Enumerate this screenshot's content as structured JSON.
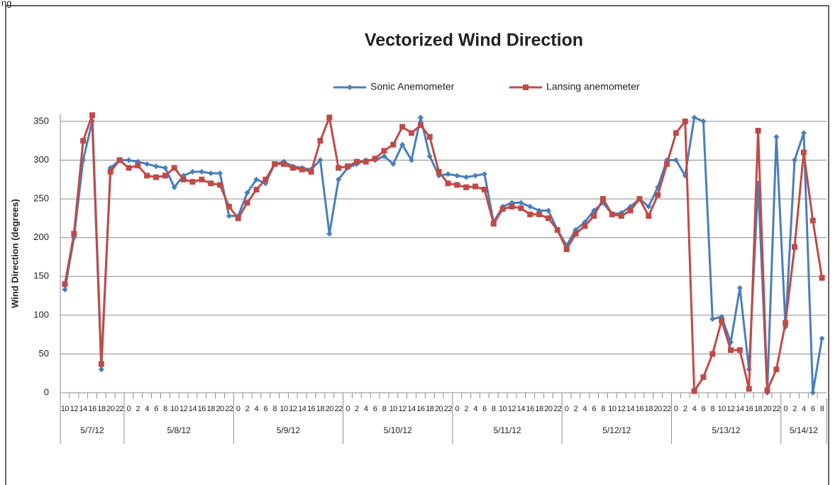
{
  "caption": "ng",
  "chart_data": {
    "type": "line",
    "title": "Vectorized Wind Direction",
    "y_label": "Wind Direction (degrees)",
    "categories": [
      "10",
      "12",
      "14",
      "16",
      "18",
      "20",
      "22",
      "0",
      "2",
      "4",
      "6",
      "8",
      "10",
      "12",
      "14",
      "16",
      "18",
      "20",
      "22",
      "0",
      "2",
      "4",
      "6",
      "8",
      "10",
      "12",
      "14",
      "16",
      "18",
      "20",
      "22",
      "0",
      "2",
      "4",
      "6",
      "8",
      "10",
      "12",
      "14",
      "16",
      "18",
      "20",
      "22",
      "0",
      "2",
      "4",
      "6",
      "8",
      "10",
      "12",
      "14",
      "16",
      "18",
      "20",
      "22",
      "0",
      "2",
      "4",
      "6",
      "8",
      "10",
      "12",
      "14",
      "16",
      "18",
      "20",
      "22",
      "0",
      "2",
      "4",
      "6",
      "8",
      "10",
      "12",
      "14",
      "16",
      "18",
      "20",
      "22",
      "0",
      "2",
      "4",
      "6",
      "8"
    ],
    "groups": [
      {
        "label": "5/7/12",
        "count": 7
      },
      {
        "label": "5/8/12",
        "count": 12
      },
      {
        "label": "5/9/12",
        "count": 12
      },
      {
        "label": "5/10/12",
        "count": 12
      },
      {
        "label": "5/11/12",
        "count": 12
      },
      {
        "label": "5/12/12",
        "count": 12
      },
      {
        "label": "5/13/12",
        "count": 12
      },
      {
        "label": "5/14/12",
        "count": 5
      }
    ],
    "series": [
      {
        "name": "Sonic Anemometer",
        "color": "#4a7ebb",
        "marker": "diamond",
        "values": [
          133,
          200,
          300,
          350,
          30,
          290,
          300,
          300,
          298,
          295,
          292,
          290,
          265,
          280,
          285,
          285,
          283,
          283,
          228,
          228,
          258,
          275,
          270,
          295,
          298,
          292,
          290,
          288,
          300,
          205,
          275,
          290,
          295,
          300,
          300,
          305,
          295,
          320,
          300,
          355,
          305,
          280,
          282,
          280,
          278,
          280,
          282,
          220,
          240,
          245,
          245,
          240,
          235,
          235,
          210,
          190,
          210,
          220,
          235,
          245,
          230,
          232,
          240,
          250,
          240,
          265,
          300,
          300,
          280,
          355,
          350,
          95,
          98,
          65,
          135,
          30,
          270,
          0,
          330,
          85,
          300,
          335,
          0,
          70
        ]
      },
      {
        "name": "Lansing anemometer",
        "color": "#be4b48",
        "marker": "square",
        "values": [
          140,
          205,
          325,
          358,
          37,
          285,
          300,
          290,
          293,
          280,
          278,
          280,
          290,
          275,
          272,
          275,
          270,
          268,
          240,
          225,
          245,
          262,
          275,
          295,
          295,
          290,
          288,
          285,
          325,
          355,
          290,
          292,
          298,
          298,
          302,
          312,
          320,
          343,
          335,
          345,
          330,
          285,
          270,
          268,
          265,
          266,
          262,
          218,
          237,
          240,
          238,
          230,
          230,
          225,
          210,
          185,
          205,
          215,
          228,
          250,
          230,
          228,
          235,
          250,
          228,
          255,
          295,
          335,
          350,
          2,
          20,
          50,
          93,
          55,
          55,
          5,
          338,
          3,
          30,
          90,
          188,
          310,
          222,
          148
        ]
      }
    ],
    "ylim": [
      0,
      360
    ],
    "yticks": [
      0,
      50,
      100,
      150,
      200,
      250,
      300,
      350
    ],
    "grid": true,
    "legend": "top"
  }
}
